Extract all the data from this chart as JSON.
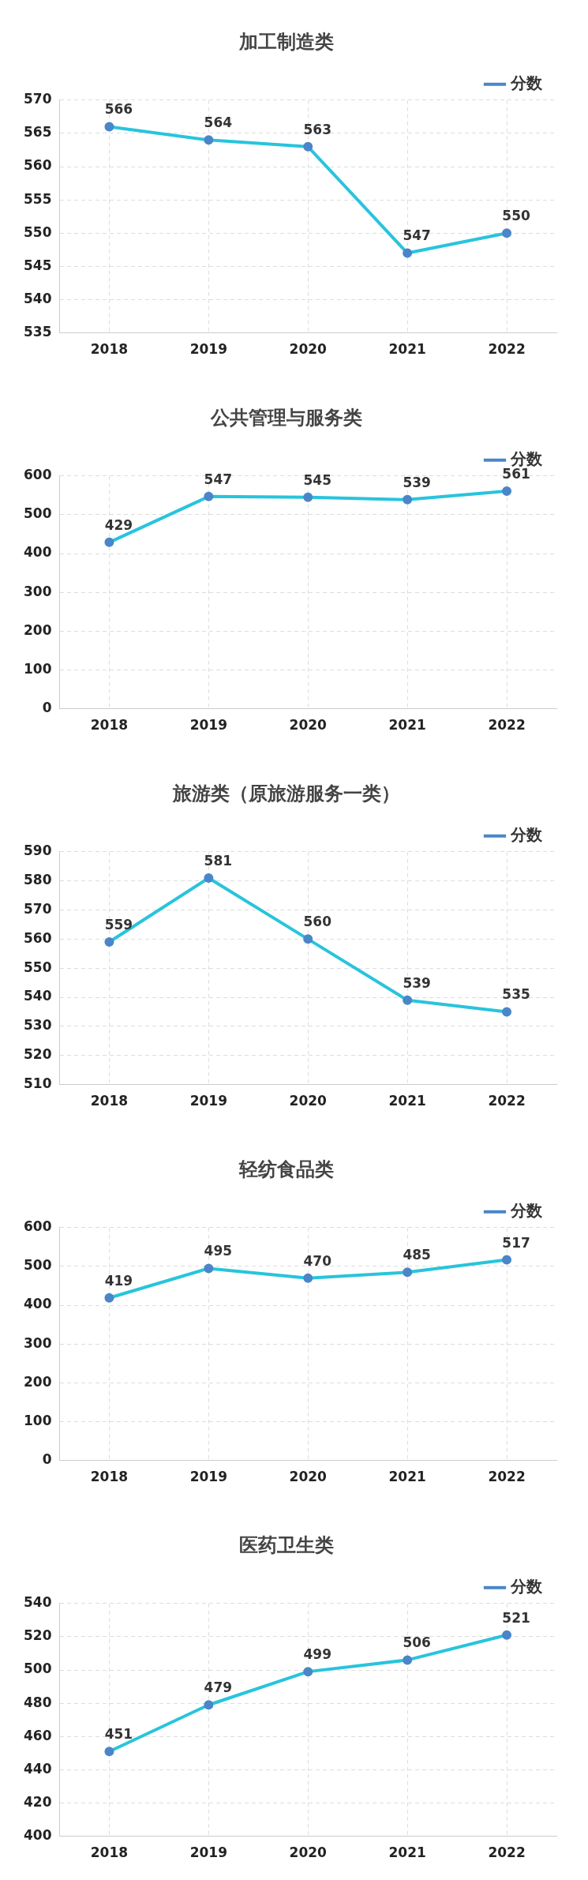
{
  "chart_data": [
    {
      "type": "line",
      "title": "加工制造类",
      "categories": [
        "2018",
        "2019",
        "2020",
        "2021",
        "2022"
      ],
      "series": [
        {
          "name": "分数",
          "color": "#28c4dc",
          "values": [
            566,
            564,
            563,
            547,
            550
          ]
        }
      ],
      "ylim": [
        535,
        570
      ],
      "yticks": [
        535,
        540,
        545,
        550,
        555,
        560,
        565,
        570
      ],
      "grid": true,
      "legend": "top right",
      "marker": "circle",
      "data_labels": true
    },
    {
      "type": "line",
      "title": "公共管理与服务类",
      "categories": [
        "2018",
        "2019",
        "2020",
        "2021",
        "2022"
      ],
      "series": [
        {
          "name": "分数",
          "color": "#28c4dc",
          "values": [
            429,
            547,
            545,
            539,
            561
          ]
        }
      ],
      "ylim": [
        0,
        600
      ],
      "yticks": [
        0,
        100,
        200,
        300,
        400,
        500,
        600
      ],
      "grid": true,
      "legend": "top right",
      "marker": "circle",
      "data_labels": true
    },
    {
      "type": "line",
      "title": "旅游类（原旅游服务一类）",
      "categories": [
        "2018",
        "2019",
        "2020",
        "2021",
        "2022"
      ],
      "series": [
        {
          "name": "分数",
          "color": "#28c4dc",
          "values": [
            559,
            581,
            560,
            539,
            535
          ]
        }
      ],
      "ylim": [
        510,
        590
      ],
      "yticks": [
        510,
        520,
        530,
        540,
        550,
        560,
        570,
        580,
        590
      ],
      "grid": true,
      "legend": "top right",
      "marker": "circle",
      "data_labels": true
    },
    {
      "type": "line",
      "title": "轻纺食品类",
      "categories": [
        "2018",
        "2019",
        "2020",
        "2021",
        "2022"
      ],
      "series": [
        {
          "name": "分数",
          "color": "#28c4dc",
          "values": [
            419,
            495,
            470,
            485,
            517
          ]
        }
      ],
      "ylim": [
        0,
        600
      ],
      "yticks": [
        0,
        100,
        200,
        300,
        400,
        500,
        600
      ],
      "grid": true,
      "legend": "top right",
      "marker": "circle",
      "data_labels": true
    },
    {
      "type": "line",
      "title": "医药卫生类",
      "categories": [
        "2018",
        "2019",
        "2020",
        "2021",
        "2022"
      ],
      "series": [
        {
          "name": "分数",
          "color": "#28c4dc",
          "values": [
            451,
            479,
            499,
            506,
            521
          ]
        }
      ],
      "ylim": [
        400,
        540
      ],
      "yticks": [
        400,
        420,
        440,
        460,
        480,
        500,
        520,
        540
      ],
      "grid": true,
      "legend": "top right",
      "marker": "circle",
      "data_labels": true
    }
  ]
}
